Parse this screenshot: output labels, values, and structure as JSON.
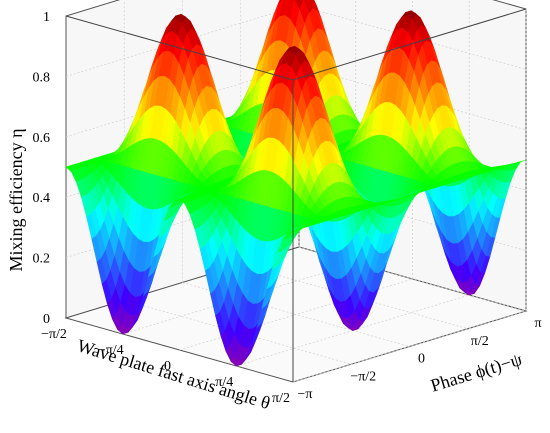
{
  "chart_data": {
    "type": "surface3d",
    "title": "",
    "zlabel": "Mixing efficiency η",
    "xlabel": "Wave plate fast axis angle θ",
    "ylabel": "Phase ϕ(t)−ψ",
    "xlim_rad": [
      -1.5708,
      1.5708
    ],
    "ylim_rad": [
      -3.1416,
      3.1416
    ],
    "zlim": [
      0,
      1
    ],
    "x_ticks": [
      "−π/2",
      "−π/4",
      "0",
      "π/4",
      "π/2"
    ],
    "y_ticks": [
      "−π",
      "−π/2",
      "0",
      "π/2",
      "π"
    ],
    "z_ticks": [
      "0",
      "0.2",
      "0.4",
      "0.6",
      "0.8",
      "1"
    ],
    "peaks": [
      {
        "theta": "−π/4",
        "phase": "−π/2",
        "eta": 1
      },
      {
        "theta": "−π/4",
        "phase": "π/2",
        "eta": 1
      },
      {
        "theta": "π/4",
        "phase": "−π/2",
        "eta": 1
      },
      {
        "theta": "π/4",
        "phase": "π/2",
        "eta": 1
      }
    ],
    "troughs": [
      {
        "theta": "−π/4",
        "phase": "0",
        "eta": 0
      },
      {
        "theta": "π/4",
        "phase": "0",
        "eta": 0
      }
    ],
    "value_at_theta_zero": 0.5,
    "value_at_theta_pi_over_2": 0.5,
    "colormap": "jet (violet→blue→cyan→green→yellow→red by η)",
    "grid": true,
    "box": true
  }
}
